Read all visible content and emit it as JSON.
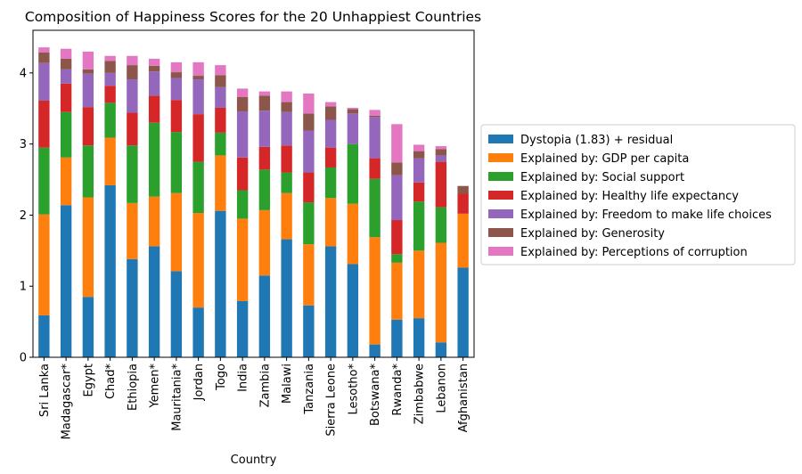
{
  "chart_data": {
    "type": "bar",
    "stacked": true,
    "title": "Composition of Happiness Scores for the 20 Unhappiest Countries",
    "xlabel": "Country",
    "ylabel": "",
    "ylim": [
      0,
      4.6
    ],
    "yticks": [
      0,
      1,
      2,
      3,
      4
    ],
    "grid": false,
    "legend_position": "right-outside",
    "categories": [
      "Sri Lanka",
      "Madagascar*",
      "Egypt",
      "Chad*",
      "Ethiopia",
      "Yemen*",
      "Mauritania*",
      "Jordan",
      "Togo",
      "India",
      "Zambia",
      "Malawi",
      "Tanzania",
      "Sierra Leone",
      "Lesotho*",
      "Botswana*",
      "Rwanda*",
      "Zimbabwe",
      "Lebanon",
      "Afghanistan"
    ],
    "series": [
      {
        "name": "Dystopia (1.83) + residual",
        "color": "#1f77b4",
        "values": [
          0.59,
          2.14,
          0.85,
          2.42,
          1.38,
          1.56,
          1.21,
          0.7,
          2.06,
          0.79,
          1.15,
          1.66,
          0.73,
          1.56,
          1.31,
          0.18,
          0.53,
          0.55,
          0.21,
          1.26
        ]
      },
      {
        "name": "Explained by: GDP per capita",
        "color": "#ff7f0e",
        "values": [
          1.42,
          0.67,
          1.4,
          0.67,
          0.79,
          0.7,
          1.1,
          1.33,
          0.78,
          1.16,
          0.92,
          0.65,
          0.86,
          0.68,
          0.85,
          1.51,
          0.8,
          0.95,
          1.4,
          0.76
        ]
      },
      {
        "name": "Explained by: Social support",
        "color": "#2ca02c",
        "values": [
          0.94,
          0.64,
          0.73,
          0.49,
          0.81,
          1.04,
          0.86,
          0.72,
          0.32,
          0.4,
          0.57,
          0.29,
          0.59,
          0.43,
          0.84,
          0.82,
          0.12,
          0.69,
          0.5,
          0.0
        ]
      },
      {
        "name": "Explained by: Healthy life expectancy",
        "color": "#d62728",
        "values": [
          0.66,
          0.4,
          0.54,
          0.24,
          0.46,
          0.38,
          0.45,
          0.67,
          0.35,
          0.46,
          0.32,
          0.38,
          0.42,
          0.28,
          0.0,
          0.29,
          0.48,
          0.27,
          0.64,
          0.28
        ]
      },
      {
        "name": "Explained by: Freedom to make life choices",
        "color": "#9467bd",
        "values": [
          0.53,
          0.2,
          0.47,
          0.18,
          0.47,
          0.34,
          0.31,
          0.49,
          0.29,
          0.65,
          0.51,
          0.47,
          0.59,
          0.39,
          0.43,
          0.58,
          0.63,
          0.34,
          0.09,
          0.0
        ]
      },
      {
        "name": "Explained by: Generosity",
        "color": "#8c564b",
        "values": [
          0.15,
          0.15,
          0.06,
          0.17,
          0.2,
          0.08,
          0.08,
          0.05,
          0.17,
          0.2,
          0.21,
          0.14,
          0.24,
          0.19,
          0.06,
          0.02,
          0.18,
          0.1,
          0.09,
          0.11
        ]
      },
      {
        "name": "Explained by: Perceptions of corruption",
        "color": "#e377c2",
        "values": [
          0.07,
          0.14,
          0.25,
          0.07,
          0.13,
          0.1,
          0.14,
          0.19,
          0.14,
          0.12,
          0.06,
          0.15,
          0.28,
          0.06,
          0.02,
          0.08,
          0.54,
          0.09,
          0.04,
          0.0
        ]
      }
    ]
  }
}
